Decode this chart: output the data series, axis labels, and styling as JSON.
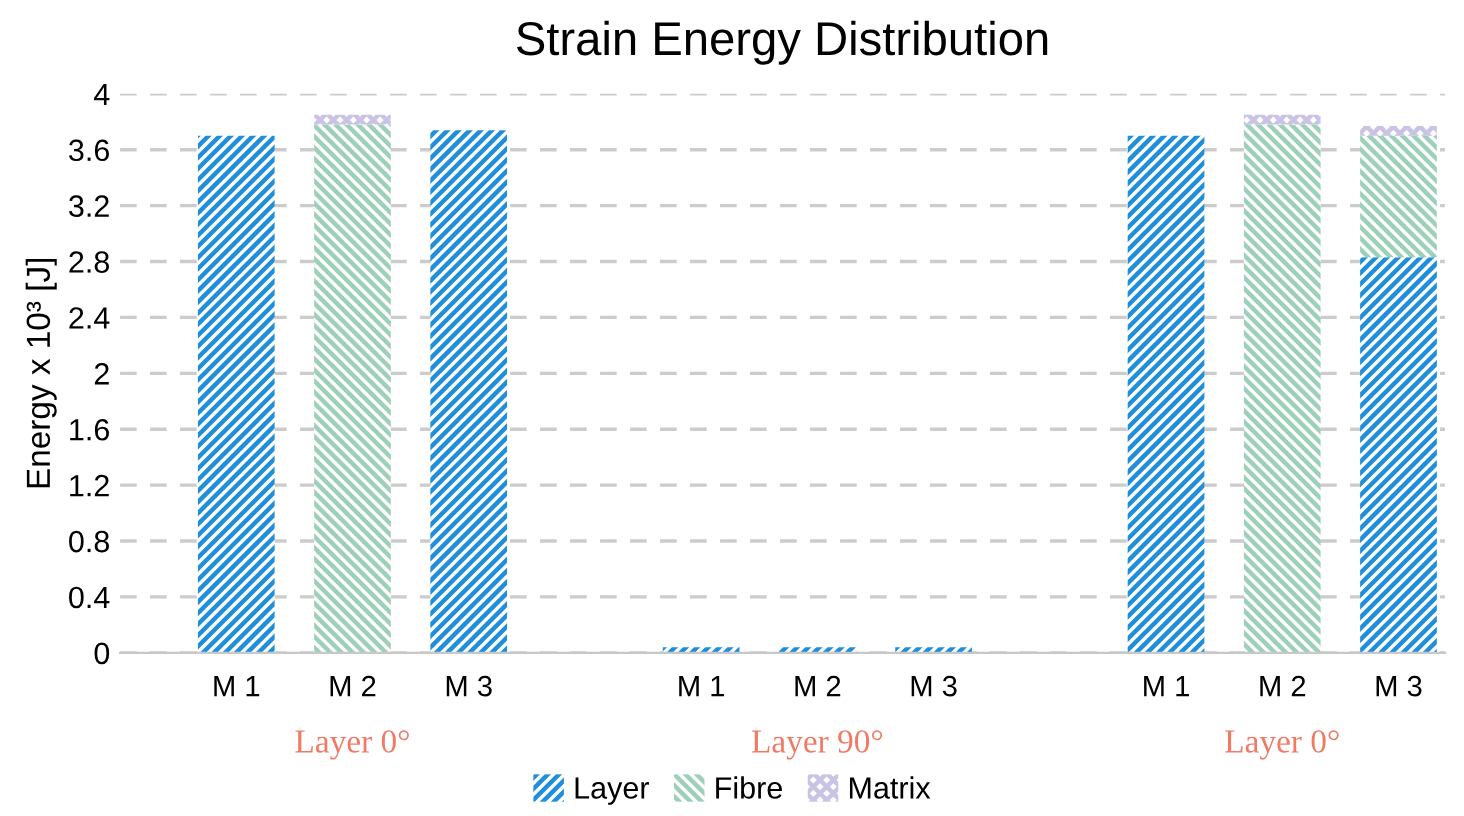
{
  "chart_data": {
    "type": "bar",
    "title": "Strain Energy Distribution",
    "ylabel": "Energy x 10³ [J]",
    "categories": [
      "M 1",
      "M 2",
      "M 3",
      null,
      "M 1",
      "M 2",
      "M 3",
      null,
      "M 1",
      "M 2",
      "M 3"
    ],
    "series": [
      {
        "name": "Layer",
        "color": "#1f8fdb",
        "values": [
          3.7,
          null,
          3.74,
          null,
          0.04,
          0.04,
          0.04,
          null,
          3.7,
          null,
          2.83
        ]
      },
      {
        "name": "Fibre",
        "color": "#9dd0b8",
        "values": [
          null,
          3.78,
          null,
          null,
          null,
          null,
          null,
          null,
          null,
          3.78,
          0.87
        ]
      },
      {
        "name": "Matrix",
        "color": "#c9c3e6",
        "values": [
          null,
          0.07,
          null,
          null,
          null,
          null,
          null,
          null,
          null,
          0.07,
          0.07
        ]
      }
    ],
    "stacked": true,
    "ylim": [
      0,
      4
    ],
    "yticks": [
      0,
      0.4,
      0.8,
      1.2,
      1.6,
      2,
      2.4,
      2.8,
      3.2,
      3.6,
      4
    ],
    "grid": "y",
    "legend": "bottom",
    "annotations": [
      "Layer 0°",
      "Layer 90°",
      "Layer 0°"
    ]
  }
}
